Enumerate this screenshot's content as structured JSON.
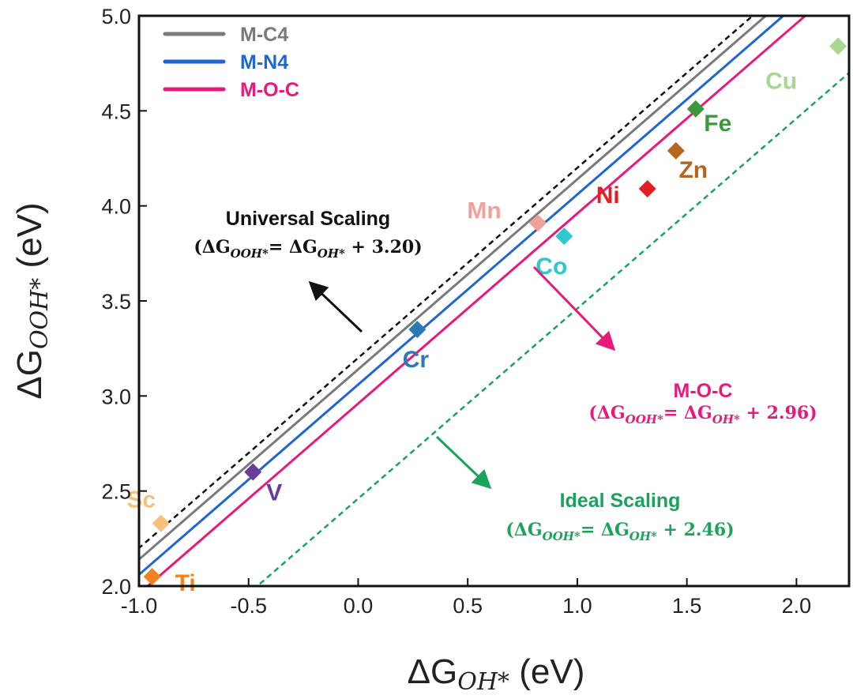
{
  "chart_data": {
    "type": "scatter",
    "xlabel": {
      "main": "ΔG",
      "sub": "OH*",
      "unit": " (eV)"
    },
    "ylabel": {
      "main": "ΔG",
      "sub": "OOH*",
      "unit": " (eV)"
    },
    "xlim": [
      -1.0,
      2.24
    ],
    "ylim": [
      2.0,
      5.0
    ],
    "xticks": [
      "-1.0",
      "-0.5",
      "0.0",
      "0.5",
      "1.0",
      "1.5",
      "2.0"
    ],
    "xtick_values": [
      -1.0,
      -0.5,
      0.0,
      0.5,
      1.0,
      1.5,
      2.0
    ],
    "yticks": [
      "2.0",
      "2.5",
      "3.0",
      "3.5",
      "4.0",
      "4.5",
      "5.0"
    ],
    "ytick_values": [
      2.0,
      2.5,
      3.0,
      3.5,
      4.0,
      4.5,
      5.0
    ],
    "grid": false,
    "legend": {
      "position": "top-left",
      "entries": [
        {
          "name": "M-C4",
          "color": "#7a7a7a"
        },
        {
          "name": "M-N4",
          "color": "#1f66d1"
        },
        {
          "name": "M-O-C",
          "color": "#e8197a"
        }
      ]
    },
    "lines": [
      {
        "name": "M-C4",
        "slope": 1,
        "intercept": 3.14,
        "color": "#7a7a7a",
        "style": "solid"
      },
      {
        "name": "M-N4",
        "slope": 1,
        "intercept": 3.06,
        "color": "#1f66d1",
        "style": "solid"
      },
      {
        "name": "M-O-C",
        "slope": 1,
        "intercept": 2.96,
        "color": "#e8197a",
        "style": "solid"
      },
      {
        "name": "Universal Scaling",
        "slope": 1,
        "intercept": 3.2,
        "color": "#111111",
        "style": "dashed"
      },
      {
        "name": "Ideal Scaling",
        "slope": 1,
        "intercept": 2.46,
        "color": "#1aa35a",
        "style": "dashed"
      }
    ],
    "points": [
      {
        "label": "Sc",
        "x": -0.9,
        "y": 2.33,
        "color": "#f9c07c"
      },
      {
        "label": "Ti",
        "x": -0.94,
        "y": 2.05,
        "color": "#f58220"
      },
      {
        "label": "V",
        "x": -0.48,
        "y": 2.6,
        "color": "#6a3d9a"
      },
      {
        "label": "Cr",
        "x": 0.27,
        "y": 3.35,
        "color": "#2a7ab8"
      },
      {
        "label": "Mn",
        "x": 0.82,
        "y": 3.91,
        "color": "#f4a09a"
      },
      {
        "label": "Co",
        "x": 0.94,
        "y": 3.84,
        "color": "#2ec8d0"
      },
      {
        "label": "Ni",
        "x": 1.32,
        "y": 4.09,
        "color": "#e02020"
      },
      {
        "label": "Zn",
        "x": 1.45,
        "y": 4.29,
        "color": "#b5651d"
      },
      {
        "label": "Fe",
        "x": 1.54,
        "y": 4.51,
        "color": "#3a9a3a"
      },
      {
        "label": "Cu",
        "x": 2.19,
        "y": 4.84,
        "color": "#a8d890"
      }
    ],
    "annotations": [
      {
        "title": "Universal Scaling",
        "lhs": "(ΔG",
        "lhs_sub": "OOH*",
        "mid": "= ΔG",
        "rhs_sub": "OH*",
        "tail": " + 3.20)",
        "color": "#111111"
      },
      {
        "title": "M-O-C",
        "lhs": "(ΔG",
        "lhs_sub": "OOH*",
        "mid": "= ΔG",
        "rhs_sub": "OH*",
        "tail": " + 2.96)",
        "color": "#e8197a"
      },
      {
        "title": "Ideal Scaling",
        "lhs": "(ΔG",
        "lhs_sub": "OOH*",
        "mid": "= ΔG",
        "rhs_sub": "OH*",
        "tail": " + 2.46)",
        "color": "#1aa35a"
      }
    ]
  }
}
